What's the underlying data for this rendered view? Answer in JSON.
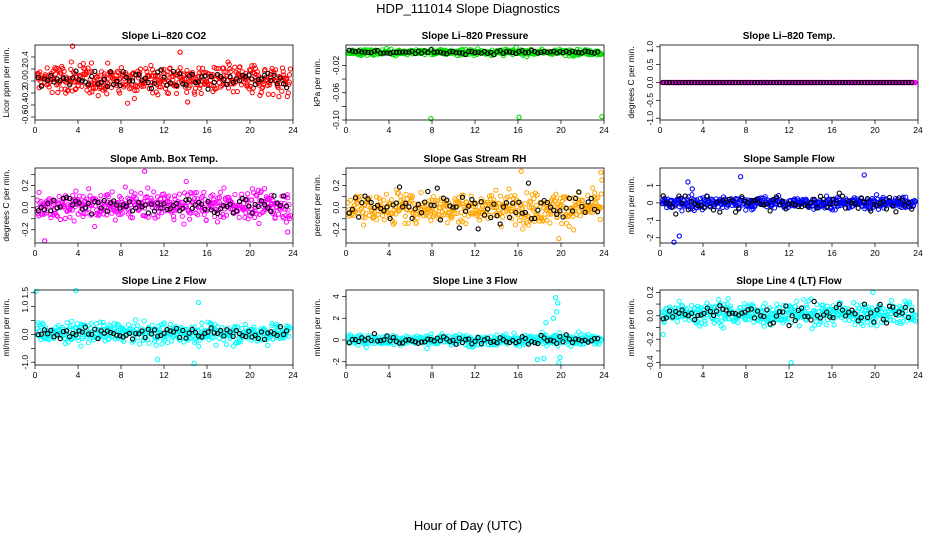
{
  "figure": {
    "title": "HDP_111014  Slope Diagnostics",
    "xlabel": "Hour of Day (UTC)"
  },
  "chart_data": [
    {
      "type": "scatter",
      "title": "Slope Li–820 CO2",
      "ylabel": "Licor ppm per min.",
      "xlim": [
        0,
        24
      ],
      "xticks": [
        0,
        4,
        8,
        12,
        16,
        20,
        24
      ],
      "ylim": [
        -0.65,
        0.6
      ],
      "yticks": [
        -0.6,
        -0.4,
        -0.2,
        0.0,
        0.2,
        0.4
      ],
      "ytick_labels": [
        "-0.6",
        "-0.4",
        "-0.2",
        "0.0",
        "0.2",
        "0.4"
      ],
      "colors": {
        "main": "#ff0000",
        "highlight": "#000000"
      },
      "spread": 0.18,
      "highlight_spread": 0.1,
      "offset": 0.02,
      "series": [
        {
          "name": "",
          "x": [
            3.5,
            14.2,
            13.5
          ],
          "y": [
            0.58,
            -0.35,
            0.48
          ]
        }
      ]
    },
    {
      "type": "scatter",
      "title": "Slope Li–820 Pressure",
      "ylabel": "kPa per min.",
      "xlim": [
        0,
        24
      ],
      "xticks": [
        0,
        4,
        8,
        12,
        16,
        20,
        24
      ],
      "ylim": [
        -0.1,
        0.01
      ],
      "yticks": [
        -0.1,
        -0.08,
        -0.06,
        -0.04,
        -0.02
      ],
      "ytick_labels": [
        "-0.10",
        "",
        "-0.06",
        "",
        "-0.02"
      ],
      "colors": {
        "main": "#00e000",
        "highlight": "#000000"
      },
      "spread": 0.003,
      "highlight_spread": 0.002,
      "offset": -0.0005,
      "series": [
        {
          "name": "",
          "x": [
            7.9,
            16.1,
            23.8
          ],
          "y": [
            -0.098,
            -0.096,
            -0.095
          ]
        }
      ]
    },
    {
      "type": "scatter",
      "title": "Slope Li–820 Temp.",
      "ylabel": "degrees C per min.",
      "xlim": [
        0,
        24
      ],
      "xticks": [
        0,
        4,
        8,
        12,
        16,
        20,
        24
      ],
      "ylim": [
        -1.05,
        1.05
      ],
      "yticks": [
        -1.0,
        -0.5,
        0.0,
        0.5,
        1.0
      ],
      "ytick_labels": [
        "-1.0",
        "-0.5",
        "0.0",
        "0.5",
        "1.0"
      ],
      "colors": {
        "main": "#ff00ff",
        "highlight": "#000000"
      },
      "spread": 0.0,
      "highlight_spread": 0.0,
      "offset": 0.0,
      "series": []
    },
    {
      "type": "scatter",
      "title": "Slope Amb. Box Temp.",
      "ylabel": "degrees C per min.",
      "xlim": [
        0,
        24
      ],
      "xticks": [
        0,
        4,
        8,
        12,
        16,
        20,
        24
      ],
      "ylim": [
        -0.32,
        0.36
      ],
      "yticks": [
        -0.2,
        -0.1,
        0.0,
        0.1,
        0.2,
        0.3
      ],
      "ytick_labels": [
        "-0.2",
        "",
        "0.0",
        "",
        "0.2",
        ""
      ],
      "colors": {
        "main": "#ff00ff",
        "highlight": "#000000"
      },
      "spread": 0.09,
      "highlight_spread": 0.06,
      "offset": 0.02,
      "series": [
        {
          "name": "",
          "x": [
            10.2,
            23.5,
            0.9
          ],
          "y": [
            0.33,
            -0.22,
            -0.3
          ]
        }
      ]
    },
    {
      "type": "scatter",
      "title": "Slope Gas Stream RH",
      "ylabel": "percent per min.",
      "xlim": [
        0,
        24
      ],
      "xticks": [
        0,
        4,
        8,
        12,
        16,
        20,
        24
      ],
      "ylim": [
        -0.32,
        0.36
      ],
      "yticks": [
        -0.2,
        -0.1,
        0.0,
        0.1,
        0.2,
        0.3
      ],
      "ytick_labels": [
        "-0.2",
        "",
        "0.0",
        "",
        "0.2",
        ""
      ],
      "colors": {
        "main": "#ffa500",
        "highlight": "#000000"
      },
      "spread": 0.1,
      "highlight_spread": 0.1,
      "offset": 0.0,
      "series": [
        {
          "name": "",
          "x": [
            16.3,
            23.7,
            23.8,
            19.8
          ],
          "y": [
            0.33,
            0.32,
            0.25,
            -0.28
          ]
        }
      ]
    },
    {
      "type": "scatter",
      "title": "Slope Sample Flow",
      "ylabel": "ml/min per min.",
      "xlim": [
        0,
        24
      ],
      "xticks": [
        0,
        4,
        8,
        12,
        16,
        20,
        24
      ],
      "ylim": [
        -2.3,
        2.0
      ],
      "yticks": [
        -2,
        -1,
        0,
        1
      ],
      "ytick_labels": [
        "-2",
        "-1",
        "0",
        "1"
      ],
      "colors": {
        "main": "#0000ff",
        "highlight": "#000000"
      },
      "spread": 0.25,
      "highlight_spread": 0.35,
      "offset": 0.0,
      "series": [
        {
          "name": "",
          "x": [
            1.3,
            1.8,
            2.6,
            3.0,
            7.5,
            19.0
          ],
          "y": [
            -2.25,
            -1.9,
            1.2,
            0.8,
            1.5,
            1.6
          ]
        }
      ]
    },
    {
      "type": "scatter",
      "title": "Slope Line 2 Flow",
      "ylabel": "ml/min per min.",
      "xlim": [
        0,
        24
      ],
      "xticks": [
        0,
        4,
        8,
        12,
        16,
        20,
        24
      ],
      "ylim": [
        -1.1,
        1.6
      ],
      "yticks": [
        -1.0,
        -0.5,
        0.0,
        0.5,
        1.0,
        1.5
      ],
      "ytick_labels": [
        "-1.0",
        "",
        "0.0",
        "",
        "1.0",
        "1.5"
      ],
      "colors": {
        "main": "#00ffff",
        "highlight": "#000000"
      },
      "spread": 0.25,
      "highlight_spread": 0.15,
      "offset": 0.05,
      "series": [
        {
          "name": "",
          "x": [
            0.1,
            3.8,
            14.8,
            15.2,
            11.4
          ],
          "y": [
            1.55,
            1.58,
            -1.05,
            1.15,
            -0.9
          ]
        }
      ]
    },
    {
      "type": "scatter",
      "title": "Slope Line 3 Flow",
      "ylabel": "ml/min per min.",
      "xlim": [
        0,
        24
      ],
      "xticks": [
        0,
        4,
        8,
        12,
        16,
        20,
        24
      ],
      "ylim": [
        -2.3,
        4.6
      ],
      "yticks": [
        -2,
        0,
        2,
        4
      ],
      "ytick_labels": [
        "-2",
        "0",
        "2",
        "4"
      ],
      "colors": {
        "main": "#00ffff",
        "highlight": "#000000"
      },
      "spread": 0.35,
      "highlight_spread": 0.3,
      "offset": 0.0,
      "series": [
        {
          "name": "",
          "x": [
            19.5,
            19.7,
            19.6,
            19.3,
            19.8,
            18.6,
            19.9,
            17.8,
            18.4
          ],
          "y": [
            3.9,
            3.4,
            2.6,
            2.0,
            -2.1,
            1.6,
            -1.6,
            -1.8,
            -1.7
          ]
        }
      ]
    },
    {
      "type": "scatter",
      "title": "Slope Line 4 (LT) Flow",
      "ylabel": "ml/min per min.",
      "xlim": [
        0,
        24
      ],
      "xticks": [
        0,
        4,
        8,
        12,
        16,
        20,
        24
      ],
      "ylim": [
        -0.42,
        0.22
      ],
      "yticks": [
        -0.4,
        -0.3,
        -0.2,
        -0.1,
        0.0,
        0.1,
        0.2
      ],
      "ytick_labels": [
        "-0.4",
        "",
        "-0.2",
        "",
        "0.0",
        "",
        "0.2"
      ],
      "colors": {
        "main": "#00ffff",
        "highlight": "#000000"
      },
      "spread": 0.07,
      "highlight_spread": 0.06,
      "offset": 0.02,
      "series": [
        {
          "name": "",
          "x": [
            12.2,
            19.8,
            0.3
          ],
          "y": [
            -0.4,
            0.2,
            -0.16
          ]
        }
      ]
    }
  ]
}
